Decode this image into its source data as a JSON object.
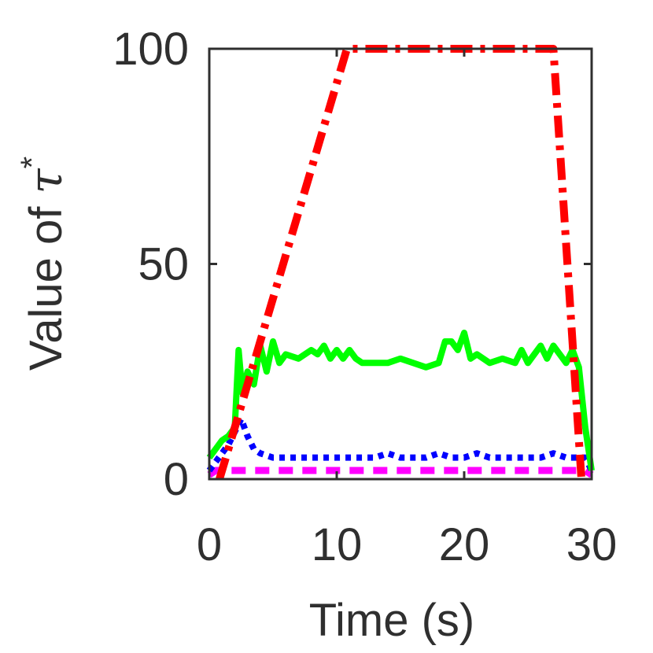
{
  "chart_data": {
    "type": "line",
    "title": "",
    "xlabel": "Time (s)",
    "ylabel": {
      "prefix": "Value of ",
      "symbol": "τ",
      "superscript": "*"
    },
    "xlim": [
      0,
      30
    ],
    "ylim": [
      0,
      100
    ],
    "xticks": [
      0,
      10,
      20,
      30
    ],
    "yticks": [
      0,
      50,
      100
    ],
    "xtick_labels": [
      "0",
      "10",
      "20",
      "30"
    ],
    "ytick_labels": [
      "0",
      "50",
      "100"
    ],
    "grid": false,
    "series": [
      {
        "name": "magenta-dashed",
        "color": "#ff00ff",
        "style": "dashed",
        "x": [
          0,
          0.5,
          1,
          2,
          3,
          4,
          5,
          6,
          7,
          8,
          9,
          10,
          11,
          12,
          13,
          14,
          15,
          16,
          17,
          18,
          19,
          20,
          21,
          22,
          23,
          24,
          25,
          26,
          27,
          28,
          29,
          29.5,
          30
        ],
        "y": [
          1,
          2,
          2,
          2,
          2,
          2,
          2,
          2,
          2,
          2,
          2,
          2,
          2,
          2,
          2,
          2,
          2,
          2,
          2,
          2,
          2,
          2,
          2,
          2,
          2,
          2,
          2,
          2,
          2,
          2,
          2,
          2,
          1
        ]
      },
      {
        "name": "blue-dotted",
        "color": "#0000ff",
        "style": "dotted",
        "x": [
          0,
          0.5,
          1,
          1.5,
          2,
          2.5,
          3,
          3.5,
          4,
          5,
          6,
          7,
          8,
          9,
          10,
          11,
          12,
          13,
          14,
          15,
          16,
          17,
          18,
          19,
          20,
          21,
          22,
          23,
          24,
          25,
          26,
          27,
          28,
          29,
          29.5,
          30
        ],
        "y": [
          2,
          4,
          6,
          8,
          11,
          14,
          10,
          7,
          6,
          5,
          5,
          5,
          5,
          5,
          5,
          5,
          5,
          5,
          6,
          5,
          5,
          5,
          6,
          5,
          5,
          6,
          5,
          5,
          5,
          5,
          5,
          6,
          5,
          5,
          5,
          2
        ]
      },
      {
        "name": "green-solid",
        "color": "#00ff00",
        "style": "solid",
        "x": [
          0,
          0.5,
          1,
          1.5,
          2,
          2.3,
          2.6,
          3,
          3.5,
          4,
          4.5,
          5,
          5.5,
          6,
          7,
          8,
          8.5,
          9,
          9.5,
          10,
          10.5,
          11,
          11.5,
          12,
          13,
          14,
          15,
          16,
          17,
          18,
          18.5,
          19,
          19.5,
          20,
          20.5,
          21,
          22,
          23,
          24,
          24.5,
          25,
          26,
          26.5,
          27,
          28,
          28.5,
          29,
          29.5,
          30
        ],
        "y": [
          5,
          7,
          9,
          10,
          12,
          30,
          20,
          25,
          22,
          31,
          25,
          32,
          27,
          29,
          28,
          30,
          29,
          31,
          28,
          30,
          28,
          30,
          28,
          27,
          27,
          27,
          28,
          27,
          26,
          27,
          32,
          32,
          30,
          34,
          28,
          29,
          27,
          28,
          27,
          30,
          27,
          31,
          28,
          31,
          27,
          30,
          26,
          12,
          2
        ]
      },
      {
        "name": "red-dashdot",
        "color": "#ff0000",
        "style": "dashdot",
        "x": [
          0.8,
          10.8,
          27,
          29.2
        ],
        "y": [
          0,
          100,
          100,
          0
        ]
      }
    ]
  }
}
